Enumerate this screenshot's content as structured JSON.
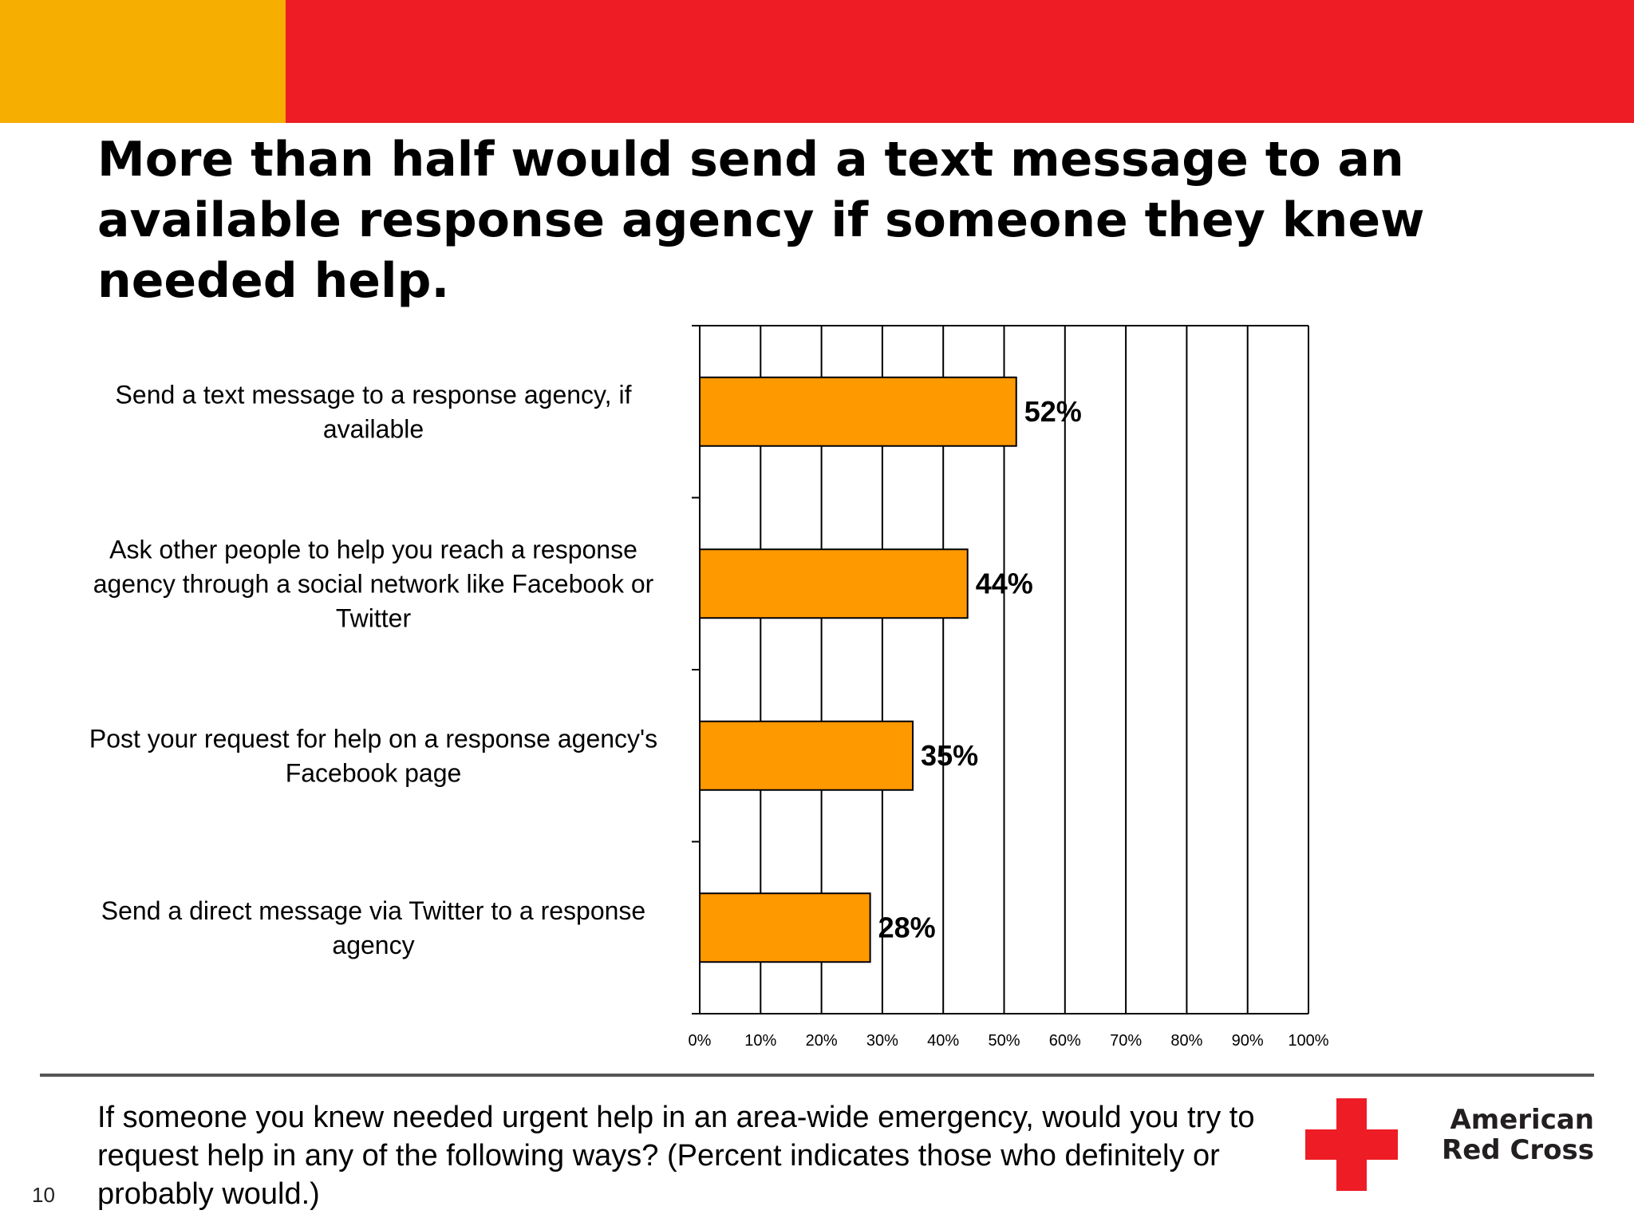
{
  "slide": {
    "title": "More than half would send a text message to an\navailable response agency if someone they knew\nneeded help.",
    "question": "If someone you knew needed urgent help in an area-wide emergency, would you try to request help in any of the following ways?  (Percent indicates those who definitely or probably would.)",
    "page_number": "10",
    "logo_text": "American\nRed Cross",
    "colors": {
      "gold_band": "#F6AE00",
      "red_band": "#EE1C25",
      "bar": "#FF9900",
      "cross": "#EE1C25"
    }
  },
  "chart_data": {
    "type": "bar",
    "orientation": "horizontal",
    "categories": [
      "Send a text message to a response agency, if available",
      "Ask other people to help you reach a response agency through a social network like Facebook or Twitter",
      "Post your request for help on a response agency's Facebook page",
      "Send a direct message via Twitter to a response agency"
    ],
    "category_lines": [
      [
        "Send a text message to a response agency, if",
        "available"
      ],
      [
        "Ask other people to help you reach a response",
        "agency through a social network like Facebook or",
        "Twitter"
      ],
      [
        "Post your request for help on a response agency's",
        "Facebook page"
      ],
      [
        "Send a direct message via Twitter to a response",
        "agency"
      ]
    ],
    "values": [
      52,
      44,
      35,
      28
    ],
    "data_labels": [
      "52%",
      "44%",
      "35%",
      "28%"
    ],
    "xlim": [
      0,
      100
    ],
    "x_ticks": [
      0,
      10,
      20,
      30,
      40,
      50,
      60,
      70,
      80,
      90,
      100
    ],
    "x_tick_labels": [
      "0%",
      "10%",
      "20%",
      "30%",
      "40%",
      "50%",
      "60%",
      "70%",
      "80%",
      "90%",
      "100%"
    ],
    "grid": true,
    "legend": "none",
    "title": "",
    "xlabel": "",
    "ylabel": ""
  }
}
